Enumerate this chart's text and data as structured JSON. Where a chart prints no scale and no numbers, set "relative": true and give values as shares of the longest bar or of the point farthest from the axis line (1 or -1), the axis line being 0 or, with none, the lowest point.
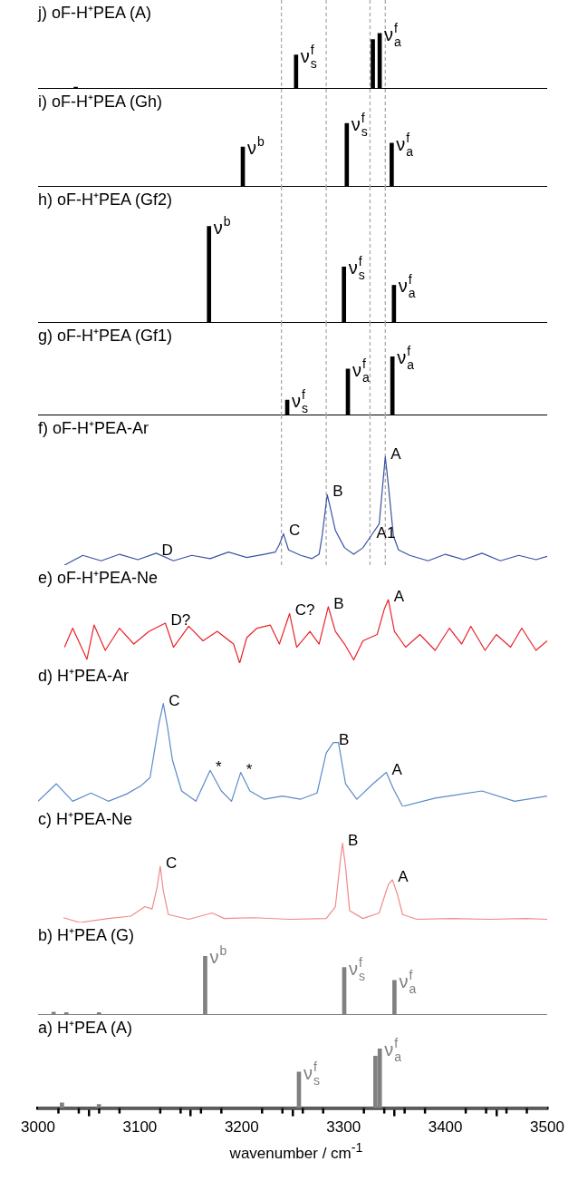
{
  "chart_data": [
    {
      "type": "bar",
      "title": "j) oF-H⁺PEA (A)",
      "x": [
        3037,
        3253.4,
        3328.8,
        3335.5
      ],
      "values": [
        0.03,
        0.61,
        0.89,
        1
      ],
      "color": "#000000",
      "relative": true,
      "xlim": [
        3000,
        3500
      ],
      "tick_labels": false,
      "ref_lines": [
        {
          "axis": "x",
          "value": 3239,
          "color": "#aaaaaa",
          "line_style": "dashed"
        },
        {
          "axis": "x",
          "value": 3283,
          "color": "#aaaaaa",
          "line_style": "dashed"
        },
        {
          "axis": "x",
          "value": 3326,
          "color": "#aaaaaa",
          "line_style": "dashed"
        },
        {
          "axis": "x",
          "value": 3341,
          "color": "#aaaaaa",
          "line_style": "dashed"
        }
      ],
      "annotations": [
        {
          "text": "ν$^{f}$$_{s}$",
          "x": 3253.4,
          "y": 0.61
        },
        {
          "text": "ν$^{f}$$_{a}$",
          "x": 3335.5,
          "y": 1
        }
      ]
    },
    {
      "type": "bar",
      "title": "i) oF-H⁺PEA (Gh)",
      "x": [
        3201.1,
        3303.2,
        3347.3
      ],
      "values": [
        0.63,
        1,
        0.69
      ],
      "color": "#000000",
      "relative": true,
      "xlim": [
        3000,
        3500
      ],
      "tick_labels": false,
      "ref_lines": [
        {
          "axis": "x",
          "value": 3239,
          "color": "#aaaaaa",
          "line_style": "dashed"
        },
        {
          "axis": "x",
          "value": 3283,
          "color": "#aaaaaa",
          "line_style": "dashed"
        },
        {
          "axis": "x",
          "value": 3326,
          "color": "#aaaaaa",
          "line_style": "dashed"
        },
        {
          "axis": "x",
          "value": 3341,
          "color": "#aaaaaa",
          "line_style": "dashed"
        }
      ],
      "annotations": [
        {
          "text": "ν$^{b}$",
          "x": 3201.1,
          "y": 0.63
        },
        {
          "text": "ν$^{f}$$_{s}$",
          "x": 3303.2,
          "y": 1
        },
        {
          "text": "ν$^{f}$$_{a}$",
          "x": 3347.3,
          "y": 0.69
        }
      ]
    },
    {
      "type": "bar",
      "title": "h) oF-H⁺PEA (Gf2)",
      "x": [
        3167.9,
        3300.4,
        3349.5
      ],
      "values": [
        1,
        0.58,
        0.39
      ],
      "color": "#000000",
      "relative": true,
      "xlim": [
        3000,
        3500
      ],
      "tick_labels": false,
      "ref_lines": [
        {
          "axis": "x",
          "value": 3239,
          "color": "#aaaaaa",
          "line_style": "dashed"
        },
        {
          "axis": "x",
          "value": 3283,
          "color": "#aaaaaa",
          "line_style": "dashed"
        },
        {
          "axis": "x",
          "value": 3326,
          "color": "#aaaaaa",
          "line_style": "dashed"
        },
        {
          "axis": "x",
          "value": 3341,
          "color": "#aaaaaa",
          "line_style": "dashed"
        }
      ],
      "annotations": [
        {
          "text": "ν$^{b}$",
          "x": 3167.9,
          "y": 1
        },
        {
          "text": "ν$^{f}$$_{s}$",
          "x": 3300.4,
          "y": 0.58
        },
        {
          "text": "ν$^{f}$$_{a}$",
          "x": 3349.5,
          "y": 0.39
        }
      ]
    },
    {
      "type": "bar",
      "title": "g) oF-H⁺PEA (Gf1)",
      "x": [
        3244.7,
        3304.3,
        3348
      ],
      "values": [
        0.26,
        0.79,
        1
      ],
      "color": "#000000",
      "relative": true,
      "xlim": [
        3000,
        3500
      ],
      "tick_labels": false,
      "ref_lines": [
        {
          "axis": "x",
          "value": 3239,
          "color": "#aaaaaa",
          "line_style": "dashed"
        },
        {
          "axis": "x",
          "value": 3283,
          "color": "#aaaaaa",
          "line_style": "dashed"
        },
        {
          "axis": "x",
          "value": 3326,
          "color": "#aaaaaa",
          "line_style": "dashed"
        },
        {
          "axis": "x",
          "value": 3341,
          "color": "#aaaaaa",
          "line_style": "dashed"
        }
      ],
      "annotations": [
        {
          "text": "ν$^{f}$$_{s}$",
          "x": 3244.7,
          "y": 0.26
        },
        {
          "text": "ν$^{f}$$_{a}$",
          "x": 3304.3,
          "y": 0.79
        },
        {
          "text": "ν$^{f}$$_{a}$",
          "x": 3348,
          "y": 1
        }
      ]
    },
    {
      "type": "line",
      "title": "f) oF-H⁺PEA-Ar",
      "x": [
        3026,
        3044,
        3062,
        3080,
        3098,
        3116,
        3133,
        3151,
        3169,
        3187,
        3205,
        3222,
        3233,
        3237,
        3241,
        3246,
        3258,
        3269,
        3276,
        3279,
        3284,
        3287,
        3292,
        3301,
        3310,
        3319,
        3327,
        3335,
        3338,
        3341,
        3344,
        3349,
        3354,
        3365,
        3383,
        3400,
        3418,
        3436,
        3454,
        3472,
        3489,
        3500
      ],
      "values": [
        0,
        0.09,
        0.04,
        0.1,
        0.05,
        0.11,
        0.04,
        0.09,
        0.06,
        0.12,
        0.07,
        0.1,
        0.12,
        0.19,
        0.29,
        0.14,
        0.09,
        0.06,
        0.1,
        0.27,
        0.65,
        0.53,
        0.32,
        0.16,
        0.1,
        0.16,
        0.27,
        0.38,
        0.69,
        1,
        0.74,
        0.27,
        0.14,
        0.09,
        0.04,
        0.1,
        0.05,
        0.11,
        0.04,
        0.09,
        0.05,
        0.08
      ],
      "color": "#3853a4",
      "relative": true,
      "xlim": [
        3000,
        3500
      ],
      "tick_labels": false,
      "ref_lines": [
        {
          "axis": "x",
          "value": 3239,
          "color": "#aaaaaa",
          "line_style": "dashed"
        },
        {
          "axis": "x",
          "value": 3283,
          "color": "#aaaaaa",
          "line_style": "dashed"
        },
        {
          "axis": "x",
          "value": 3326,
          "color": "#aaaaaa",
          "line_style": "dashed"
        },
        {
          "axis": "x",
          "value": 3341,
          "color": "#aaaaaa",
          "line_style": "dashed"
        }
      ],
      "annotations": [
        {
          "text": "D",
          "x": 3116,
          "y": 0.11
        },
        {
          "text": "C",
          "x": 3241,
          "y": 0.29
        },
        {
          "text": "B",
          "x": 3284,
          "y": 0.65
        },
        {
          "text": "A1",
          "x": 3327,
          "y": 0.27
        },
        {
          "text": "A",
          "x": 3341,
          "y": 1
        }
      ]
    },
    {
      "type": "line",
      "title": "e) oF-H⁺PEA-Ne",
      "x": [
        3026,
        3034,
        3048,
        3055,
        3066,
        3080,
        3094,
        3109,
        3125,
        3133,
        3148,
        3162,
        3176,
        3192,
        3198,
        3205,
        3215,
        3228,
        3237,
        3247,
        3254,
        3267,
        3276,
        3285,
        3292,
        3301,
        3310,
        3319,
        3333,
        3340,
        3344,
        3350,
        3361,
        3375,
        3390,
        3404,
        3416,
        3425,
        3439,
        3450,
        3464,
        3475,
        3489,
        3500
      ],
      "values": [
        0.25,
        0.55,
        0.06,
        0.6,
        0.2,
        0.55,
        0.3,
        0.5,
        0.63,
        0.25,
        0.58,
        0.35,
        0.5,
        0.3,
        0,
        0.4,
        0.55,
        0.6,
        0.3,
        0.78,
        0.25,
        0.5,
        0.3,
        0.89,
        0.5,
        0.3,
        0.05,
        0.35,
        0.45,
        0.85,
        1,
        0.5,
        0.25,
        0.45,
        0.2,
        0.55,
        0.3,
        0.58,
        0.2,
        0.45,
        0.25,
        0.55,
        0.2,
        0.35
      ],
      "color": "#e8232a",
      "relative": true,
      "xlim": [
        3000,
        3500
      ],
      "tick_labels": false,
      "annotations": [
        {
          "text": "D?",
          "x": 3125,
          "y": 0.63
        },
        {
          "text": "C?",
          "x": 3247,
          "y": 0.78
        },
        {
          "text": "B",
          "x": 3285,
          "y": 0.89
        },
        {
          "text": "A",
          "x": 3344,
          "y": 1
        }
      ]
    },
    {
      "type": "line",
      "title": "d) H⁺PEA-Ar",
      "x": [
        3000,
        3018,
        3034,
        3052,
        3069,
        3087,
        3101,
        3110,
        3119,
        3123,
        3127,
        3132,
        3141,
        3155,
        3169,
        3180,
        3190,
        3199,
        3208,
        3222,
        3240,
        3258,
        3274,
        3283,
        3290,
        3295,
        3302,
        3313,
        3329,
        3342,
        3349,
        3358,
        3390,
        3436,
        3468,
        3500
      ],
      "values": [
        0.05,
        0.22,
        0.05,
        0.13,
        0.05,
        0.12,
        0.2,
        0.28,
        0.82,
        1,
        0.78,
        0.45,
        0.15,
        0.05,
        0.35,
        0.15,
        0.05,
        0.33,
        0.15,
        0.07,
        0.1,
        0.07,
        0.13,
        0.52,
        0.62,
        0.62,
        0.22,
        0.07,
        0.22,
        0.33,
        0.17,
        0,
        0.08,
        0.15,
        0.05,
        0.1
      ],
      "color": "#5b8ac9",
      "relative": true,
      "xlim": [
        3000,
        3500
      ],
      "tick_labels": false,
      "annotations": [
        {
          "text": "C",
          "x": 3123,
          "y": 1
        },
        {
          "text": "*",
          "x": 3169,
          "y": 0.35
        },
        {
          "text": "*",
          "x": 3199,
          "y": 0.33
        },
        {
          "text": "B",
          "x": 3290,
          "y": 0.62
        },
        {
          "text": "A",
          "x": 3342,
          "y": 0.33
        }
      ]
    },
    {
      "type": "line",
      "title": "c) H⁺PEA-Ne",
      "x": [
        3025,
        3041,
        3069,
        3091,
        3105,
        3112,
        3117,
        3120,
        3123,
        3128,
        3148,
        3171,
        3183,
        3212,
        3247,
        3283,
        3292,
        3297,
        3299,
        3302,
        3306,
        3319,
        3335,
        3344,
        3348,
        3353,
        3358,
        3372,
        3407,
        3443,
        3479,
        3500
      ],
      "values": [
        0.06,
        0,
        0.05,
        0.08,
        0.2,
        0.17,
        0.45,
        0.71,
        0.4,
        0.1,
        0.04,
        0.12,
        0.05,
        0.06,
        0.04,
        0.05,
        0.2,
        0.8,
        1,
        0.7,
        0.15,
        0.05,
        0.12,
        0.48,
        0.54,
        0.35,
        0.1,
        0.04,
        0.05,
        0.04,
        0.05,
        0.04
      ],
      "color": "#f08a8a",
      "relative": true,
      "xlim": [
        3000,
        3500
      ],
      "tick_labels": false,
      "annotations": [
        {
          "text": "C",
          "x": 3120,
          "y": 0.71
        },
        {
          "text": "B",
          "x": 3299,
          "y": 1
        },
        {
          "text": "A",
          "x": 3348,
          "y": 0.54
        }
      ]
    },
    {
      "type": "bar",
      "title": "b) H⁺PEA (G)",
      "x": [
        3015.3,
        3027.8,
        3059.8,
        3164.1,
        3300.7,
        3350
      ],
      "values": [
        0.05,
        0.04,
        0.04,
        1,
        0.81,
        0.59
      ],
      "color": "#808080",
      "relative": true,
      "xlim": [
        3000,
        3500
      ],
      "tick_labels": false,
      "annotations": [
        {
          "text": "ν$^{b}$",
          "x": 3164.1,
          "y": 1
        },
        {
          "text": "ν$^{f}$$_{s}$",
          "x": 3300.7,
          "y": 0.81
        },
        {
          "text": "ν$^{f}$$_{a}$",
          "x": 3350,
          "y": 0.59
        }
      ]
    },
    {
      "type": "bar",
      "title": "a) H⁺PEA (A)",
      "x": [
        3023.5,
        3059.8,
        3256.2,
        3331.3,
        3335.6
      ],
      "values": [
        0.09,
        0.06,
        0.61,
        0.88,
        1
      ],
      "color": "#808080",
      "relative": true,
      "xlim": [
        3000,
        3500
      ],
      "tick_labels": "x",
      "xlabel": "wavenumber / cm$^{-1}$",
      "xticks": [
        3000,
        {
          "value": 3020,
          "label": null
        },
        {
          "value": 3040,
          "label": null
        },
        {
          "value": 3060,
          "label": null
        },
        {
          "value": 3080,
          "label": null
        },
        3100,
        {
          "value": 3120,
          "label": null
        },
        {
          "value": 3140,
          "label": null
        },
        {
          "value": 3160,
          "label": null
        },
        {
          "value": 3180,
          "label": null
        },
        3200,
        {
          "value": 3220,
          "label": null
        },
        {
          "value": 3240,
          "label": null
        },
        {
          "value": 3260,
          "label": null
        },
        {
          "value": 3280,
          "label": null
        },
        3300,
        {
          "value": 3320,
          "label": null
        },
        {
          "value": 3340,
          "label": null
        },
        {
          "value": 3360,
          "label": null
        },
        {
          "value": 3380,
          "label": null
        },
        3400,
        {
          "value": 3420,
          "label": null
        },
        {
          "value": 3440,
          "label": null
        },
        {
          "value": 3460,
          "label": null
        },
        {
          "value": 3480,
          "label": null
        },
        3500
      ],
      "annotations": [
        {
          "text": "ν$^{f}$$_{s}$",
          "x": 3256.2,
          "y": 0.61
        },
        {
          "text": "ν$^{f}$$_{a}$",
          "x": 3335.6,
          "y": 1
        }
      ]
    }
  ]
}
